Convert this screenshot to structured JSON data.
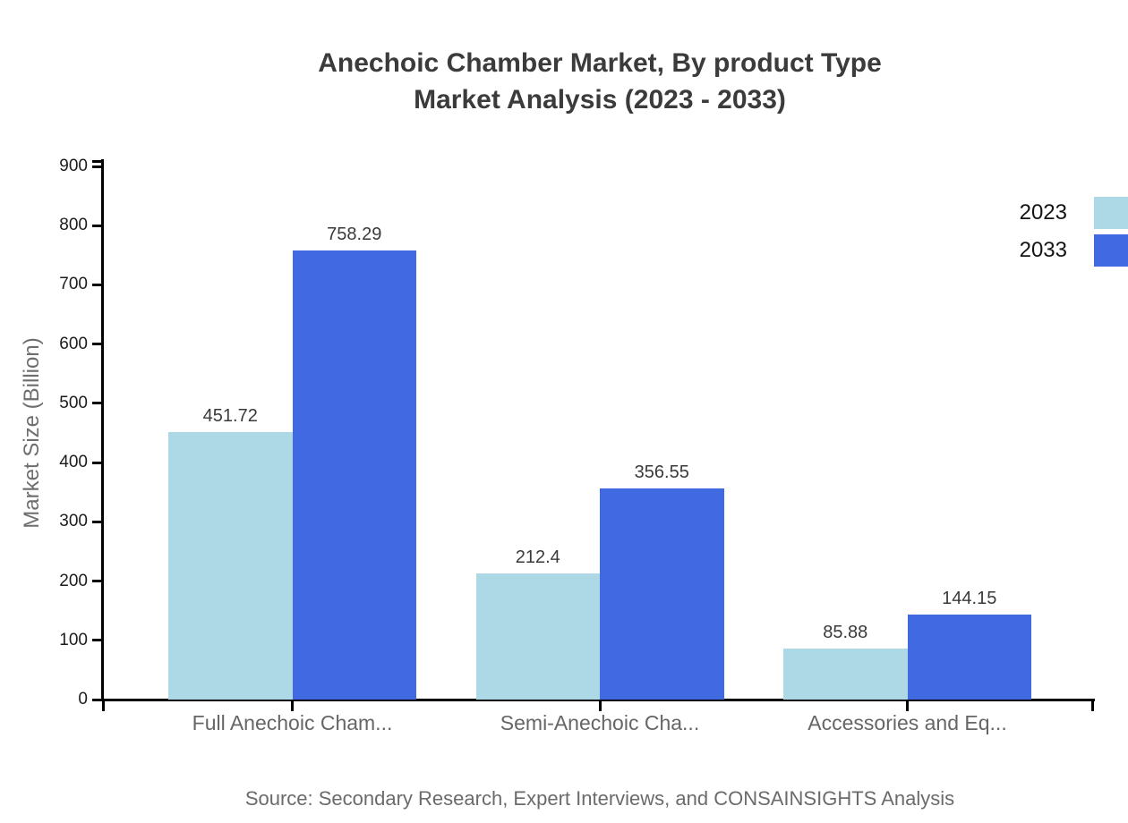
{
  "title": {
    "line1": "Anechoic Chamber Market, By product Type",
    "line2": "Market Analysis (2023 - 2033)"
  },
  "legend": {
    "items": [
      {
        "label": "2023",
        "color": "#ADD8E6"
      },
      {
        "label": "2033",
        "color": "#4169E1"
      }
    ]
  },
  "source": "Source: Secondary Research, Expert Interviews, and CONSAINSIGHTS Analysis",
  "chart_data": {
    "type": "bar",
    "title": "Anechoic Chamber Market, By product Type — Market Analysis (2023 - 2033)",
    "categories": [
      "Full Anechoic Cham...",
      "Semi-Anechoic Cha...",
      "Accessories and Eq..."
    ],
    "series": [
      {
        "name": "2023",
        "color": "#ADD8E6",
        "values": [
          451.72,
          212.4,
          85.88
        ]
      },
      {
        "name": "2033",
        "color": "#4169E1",
        "values": [
          758.29,
          356.55,
          144.15
        ]
      }
    ],
    "xlabel": "",
    "ylabel": "Market Size (Billion)",
    "ylim": [
      0,
      900
    ],
    "ytick_step": 100,
    "grid": false,
    "legend_position": "top-right",
    "colors": {
      "axis": "#000000",
      "tick_label": "#1c1c1c",
      "category_label": "#666666",
      "value_label": "#3a3a3a",
      "axis_title": "#6e6e6e"
    }
  }
}
